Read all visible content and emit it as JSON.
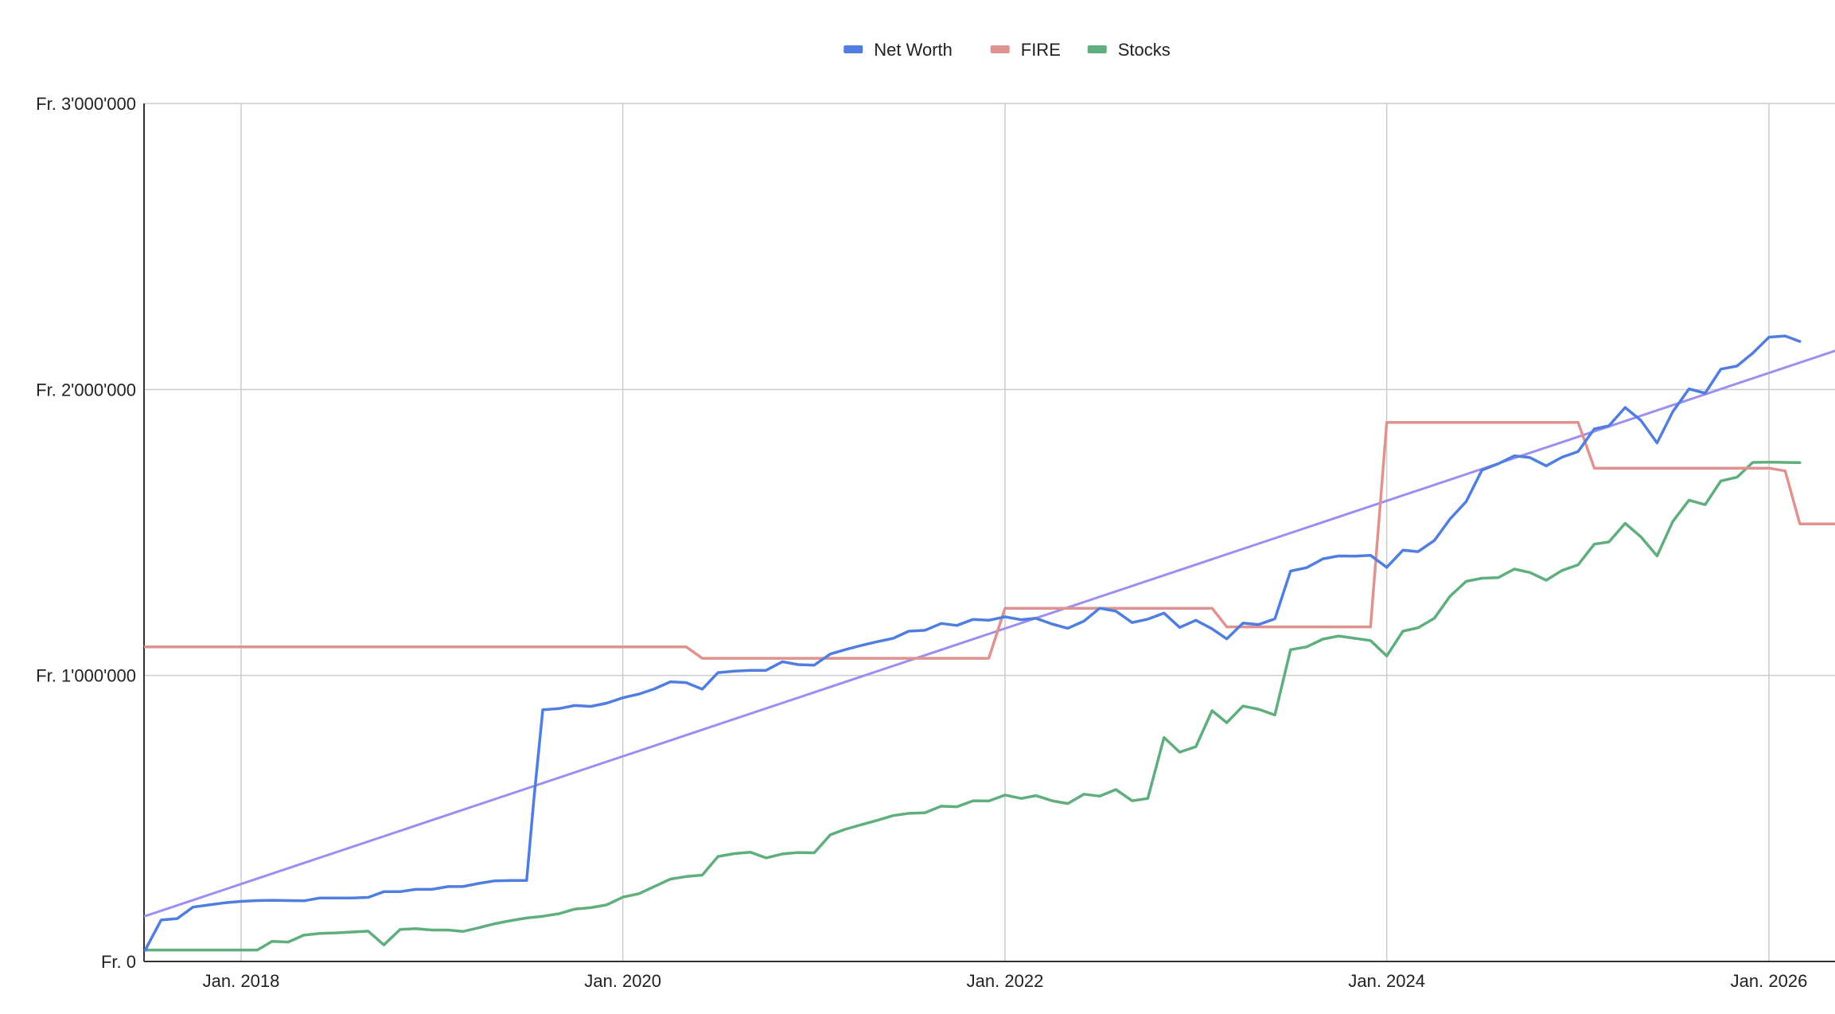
{
  "chart_data": {
    "type": "line",
    "title": "",
    "xlabel": "",
    "ylabel": "",
    "xlim": [
      "2017-06-01",
      "2026-06-01"
    ],
    "ylim": [
      0,
      3000000
    ],
    "grid": true,
    "legend_position": "top",
    "x_ticks": [
      {
        "date": "2018-01-01",
        "label": "Jan. 2018"
      },
      {
        "date": "2020-01-01",
        "label": "Jan. 2020"
      },
      {
        "date": "2022-01-01",
        "label": "Jan. 2022"
      },
      {
        "date": "2024-01-01",
        "label": "Jan. 2024"
      },
      {
        "date": "2026-01-01",
        "label": "Jan. 2026"
      }
    ],
    "y_ticks": [
      {
        "value": 0,
        "label": "Fr. 0"
      },
      {
        "value": 1000000,
        "label": "Fr. 1'000'000"
      },
      {
        "value": 2000000,
        "label": "Fr. 2'000'000"
      },
      {
        "value": 3000000,
        "label": "Fr. 3'000'000"
      }
    ],
    "series": [
      {
        "name": "Net Worth",
        "color": "#4f7ee0",
        "points": [
          [
            "2017-06-01",
            40000
          ],
          [
            "2017-07-01",
            38000
          ],
          [
            "2017-08-01",
            145000
          ],
          [
            "2017-09-01",
            150000
          ],
          [
            "2017-10-01",
            190000
          ],
          [
            "2017-11-01",
            198000
          ],
          [
            "2017-12-01",
            205000
          ],
          [
            "2018-01-01",
            210000
          ],
          [
            "2018-02-01",
            213000
          ],
          [
            "2018-03-01",
            214000
          ],
          [
            "2018-04-01",
            213000
          ],
          [
            "2018-05-01",
            212000
          ],
          [
            "2018-06-01",
            222000
          ],
          [
            "2018-07-01",
            222000
          ],
          [
            "2018-08-01",
            222000
          ],
          [
            "2018-09-01",
            224000
          ],
          [
            "2018-10-01",
            244000
          ],
          [
            "2018-11-01",
            244000
          ],
          [
            "2018-12-01",
            252000
          ],
          [
            "2019-01-01",
            252000
          ],
          [
            "2019-02-01",
            262000
          ],
          [
            "2019-03-01",
            262000
          ],
          [
            "2019-04-01",
            273000
          ],
          [
            "2019-05-01",
            282000
          ],
          [
            "2019-06-01",
            283000
          ],
          [
            "2019-07-01",
            283000
          ],
          [
            "2019-07-15",
            570000
          ],
          [
            "2019-08-01",
            880000
          ],
          [
            "2019-09-01",
            884000
          ],
          [
            "2019-10-01",
            895000
          ],
          [
            "2019-11-01",
            892000
          ],
          [
            "2019-12-01",
            903000
          ],
          [
            "2020-01-01",
            922000
          ],
          [
            "2020-02-01",
            935000
          ],
          [
            "2020-03-01",
            953000
          ],
          [
            "2020-04-01",
            978000
          ],
          [
            "2020-05-01",
            975000
          ],
          [
            "2020-06-01",
            952000
          ],
          [
            "2020-07-01",
            1010000
          ],
          [
            "2020-08-01",
            1015000
          ],
          [
            "2020-09-01",
            1018000
          ],
          [
            "2020-10-01",
            1018000
          ],
          [
            "2020-11-01",
            1048000
          ],
          [
            "2020-12-01",
            1038000
          ],
          [
            "2021-01-01",
            1036000
          ],
          [
            "2021-02-01",
            1075000
          ],
          [
            "2021-03-01",
            1090000
          ],
          [
            "2021-04-01",
            1105000
          ],
          [
            "2021-05-01",
            1118000
          ],
          [
            "2021-06-01",
            1130000
          ],
          [
            "2021-07-01",
            1155000
          ],
          [
            "2021-08-01",
            1158000
          ],
          [
            "2021-09-01",
            1182000
          ],
          [
            "2021-10-01",
            1175000
          ],
          [
            "2021-11-01",
            1196000
          ],
          [
            "2021-12-01",
            1193000
          ],
          [
            "2022-01-01",
            1205000
          ],
          [
            "2022-02-01",
            1195000
          ],
          [
            "2022-03-01",
            1200000
          ],
          [
            "2022-04-01",
            1180000
          ],
          [
            "2022-05-01",
            1165000
          ],
          [
            "2022-06-01",
            1190000
          ],
          [
            "2022-07-01",
            1235000
          ],
          [
            "2022-08-01",
            1225000
          ],
          [
            "2022-09-01",
            1185000
          ],
          [
            "2022-10-01",
            1197000
          ],
          [
            "2022-11-01",
            1218000
          ],
          [
            "2022-12-01",
            1168000
          ],
          [
            "2023-01-01",
            1193000
          ],
          [
            "2023-02-01",
            1163000
          ],
          [
            "2023-03-01",
            1128000
          ],
          [
            "2023-04-01",
            1183000
          ],
          [
            "2023-05-01",
            1178000
          ],
          [
            "2023-06-01",
            1198000
          ],
          [
            "2023-07-01",
            1365000
          ],
          [
            "2023-08-01",
            1377000
          ],
          [
            "2023-09-01",
            1408000
          ],
          [
            "2023-10-01",
            1418000
          ],
          [
            "2023-11-01",
            1417000
          ],
          [
            "2023-12-01",
            1420000
          ],
          [
            "2024-01-01",
            1378000
          ],
          [
            "2024-02-01",
            1438000
          ],
          [
            "2024-03-01",
            1433000
          ],
          [
            "2024-04-01",
            1472000
          ],
          [
            "2024-05-01",
            1547000
          ],
          [
            "2024-06-01",
            1608000
          ],
          [
            "2024-07-01",
            1718000
          ],
          [
            "2024-08-01",
            1740000
          ],
          [
            "2024-09-01",
            1768000
          ],
          [
            "2024-10-01",
            1762000
          ],
          [
            "2024-11-01",
            1733000
          ],
          [
            "2024-12-01",
            1763000
          ],
          [
            "2025-01-01",
            1783000
          ],
          [
            "2025-02-01",
            1862000
          ],
          [
            "2025-03-01",
            1873000
          ],
          [
            "2025-04-01",
            1937000
          ],
          [
            "2025-05-01",
            1892000
          ],
          [
            "2025-06-01",
            1813000
          ],
          [
            "2025-07-01",
            1922000
          ],
          [
            "2025-08-01",
            2002000
          ],
          [
            "2025-09-01",
            1987000
          ],
          [
            "2025-10-01",
            2071000
          ],
          [
            "2025-11-01",
            2082000
          ],
          [
            "2025-12-01",
            2127000
          ],
          [
            "2026-01-01",
            2183000
          ],
          [
            "2026-02-01",
            2187000
          ],
          [
            "2026-03-01",
            2168000
          ]
        ]
      },
      {
        "name": "FIRE",
        "color": "#e0928f",
        "points": [
          [
            "2017-07-01",
            1100000
          ],
          [
            "2020-05-01",
            1100000
          ],
          [
            "2020-06-01",
            1060000
          ],
          [
            "2021-12-01",
            1060000
          ],
          [
            "2022-01-01",
            1235000
          ],
          [
            "2023-02-01",
            1235000
          ],
          [
            "2023-03-01",
            1170000
          ],
          [
            "2023-12-01",
            1170000
          ],
          [
            "2024-01-01",
            1885000
          ],
          [
            "2025-01-01",
            1885000
          ],
          [
            "2025-02-01",
            1725000
          ],
          [
            "2026-01-01",
            1725000
          ],
          [
            "2026-02-01",
            1715000
          ],
          [
            "2026-03-01",
            1530000
          ],
          [
            "2026-06-01",
            1530000
          ]
        ]
      },
      {
        "name": "Stocks",
        "color": "#5fae7e",
        "points": [
          [
            "2017-06-01",
            40000
          ],
          [
            "2017-07-01",
            40000
          ],
          [
            "2017-08-01",
            40000
          ],
          [
            "2017-09-01",
            40000
          ],
          [
            "2017-10-01",
            40000
          ],
          [
            "2017-11-01",
            40000
          ],
          [
            "2017-12-01",
            40000
          ],
          [
            "2018-01-01",
            40000
          ],
          [
            "2018-02-01",
            40000
          ],
          [
            "2018-03-01",
            70000
          ],
          [
            "2018-04-01",
            68000
          ],
          [
            "2018-05-01",
            92000
          ],
          [
            "2018-06-01",
            98000
          ],
          [
            "2018-07-01",
            100000
          ],
          [
            "2018-08-01",
            103000
          ],
          [
            "2018-09-01",
            106000
          ],
          [
            "2018-10-01",
            58000
          ],
          [
            "2018-11-01",
            112000
          ],
          [
            "2018-12-01",
            115000
          ],
          [
            "2019-01-01",
            110000
          ],
          [
            "2019-02-01",
            110000
          ],
          [
            "2019-03-01",
            105000
          ],
          [
            "2019-04-01",
            118000
          ],
          [
            "2019-05-01",
            132000
          ],
          [
            "2019-06-01",
            143000
          ],
          [
            "2019-07-01",
            152000
          ],
          [
            "2019-08-01",
            158000
          ],
          [
            "2019-09-01",
            167000
          ],
          [
            "2019-10-01",
            183000
          ],
          [
            "2019-11-01",
            188000
          ],
          [
            "2019-12-01",
            198000
          ],
          [
            "2020-01-01",
            225000
          ],
          [
            "2020-02-01",
            237000
          ],
          [
            "2020-03-01",
            262000
          ],
          [
            "2020-04-01",
            288000
          ],
          [
            "2020-05-01",
            297000
          ],
          [
            "2020-06-01",
            302000
          ],
          [
            "2020-07-01",
            367000
          ],
          [
            "2020-08-01",
            377000
          ],
          [
            "2020-09-01",
            382000
          ],
          [
            "2020-10-01",
            362000
          ],
          [
            "2020-11-01",
            376000
          ],
          [
            "2020-12-01",
            381000
          ],
          [
            "2021-01-01",
            380000
          ],
          [
            "2021-02-01",
            443000
          ],
          [
            "2021-03-01",
            462000
          ],
          [
            "2021-04-01",
            478000
          ],
          [
            "2021-05-01",
            493000
          ],
          [
            "2021-06-01",
            510000
          ],
          [
            "2021-07-01",
            518000
          ],
          [
            "2021-08-01",
            520000
          ],
          [
            "2021-09-01",
            543000
          ],
          [
            "2021-10-01",
            541000
          ],
          [
            "2021-11-01",
            562000
          ],
          [
            "2021-12-01",
            561000
          ],
          [
            "2022-01-01",
            582000
          ],
          [
            "2022-02-01",
            570000
          ],
          [
            "2022-03-01",
            580000
          ],
          [
            "2022-04-01",
            562000
          ],
          [
            "2022-05-01",
            552000
          ],
          [
            "2022-06-01",
            585000
          ],
          [
            "2022-07-01",
            578000
          ],
          [
            "2022-08-01",
            601000
          ],
          [
            "2022-09-01",
            562000
          ],
          [
            "2022-10-01",
            570000
          ],
          [
            "2022-11-01",
            783000
          ],
          [
            "2022-12-01",
            732000
          ],
          [
            "2023-01-01",
            751000
          ],
          [
            "2023-02-01",
            877000
          ],
          [
            "2023-03-01",
            835000
          ],
          [
            "2023-04-01",
            893000
          ],
          [
            "2023-05-01",
            882000
          ],
          [
            "2023-06-01",
            862000
          ],
          [
            "2023-07-01",
            1090000
          ],
          [
            "2023-08-01",
            1100000
          ],
          [
            "2023-09-01",
            1127000
          ],
          [
            "2023-10-01",
            1138000
          ],
          [
            "2023-11-01",
            1130000
          ],
          [
            "2023-12-01",
            1122000
          ],
          [
            "2024-01-01",
            1068000
          ],
          [
            "2024-02-01",
            1155000
          ],
          [
            "2024-03-01",
            1167000
          ],
          [
            "2024-04-01",
            1200000
          ],
          [
            "2024-05-01",
            1277000
          ],
          [
            "2024-06-01",
            1329000
          ],
          [
            "2024-07-01",
            1340000
          ],
          [
            "2024-08-01",
            1342000
          ],
          [
            "2024-09-01",
            1372000
          ],
          [
            "2024-10-01",
            1360000
          ],
          [
            "2024-11-01",
            1333000
          ],
          [
            "2024-12-01",
            1367000
          ],
          [
            "2025-01-01",
            1387000
          ],
          [
            "2025-02-01",
            1459000
          ],
          [
            "2025-03-01",
            1467000
          ],
          [
            "2025-04-01",
            1532000
          ],
          [
            "2025-05-01",
            1485000
          ],
          [
            "2025-06-01",
            1418000
          ],
          [
            "2025-07-01",
            1538000
          ],
          [
            "2025-08-01",
            1613000
          ],
          [
            "2025-09-01",
            1597000
          ],
          [
            "2025-10-01",
            1680000
          ],
          [
            "2025-11-01",
            1693000
          ],
          [
            "2025-12-01",
            1745000
          ],
          [
            "2026-01-01",
            1746000
          ],
          [
            "2026-02-01",
            1745000
          ],
          [
            "2026-03-01",
            1744000
          ]
        ]
      }
    ],
    "trendlines": [
      {
        "series": "Net Worth",
        "color": "#9b8ef0",
        "points": [
          [
            "2017-06-01",
            140000
          ],
          [
            "2026-06-01",
            2150000
          ]
        ]
      }
    ]
  }
}
